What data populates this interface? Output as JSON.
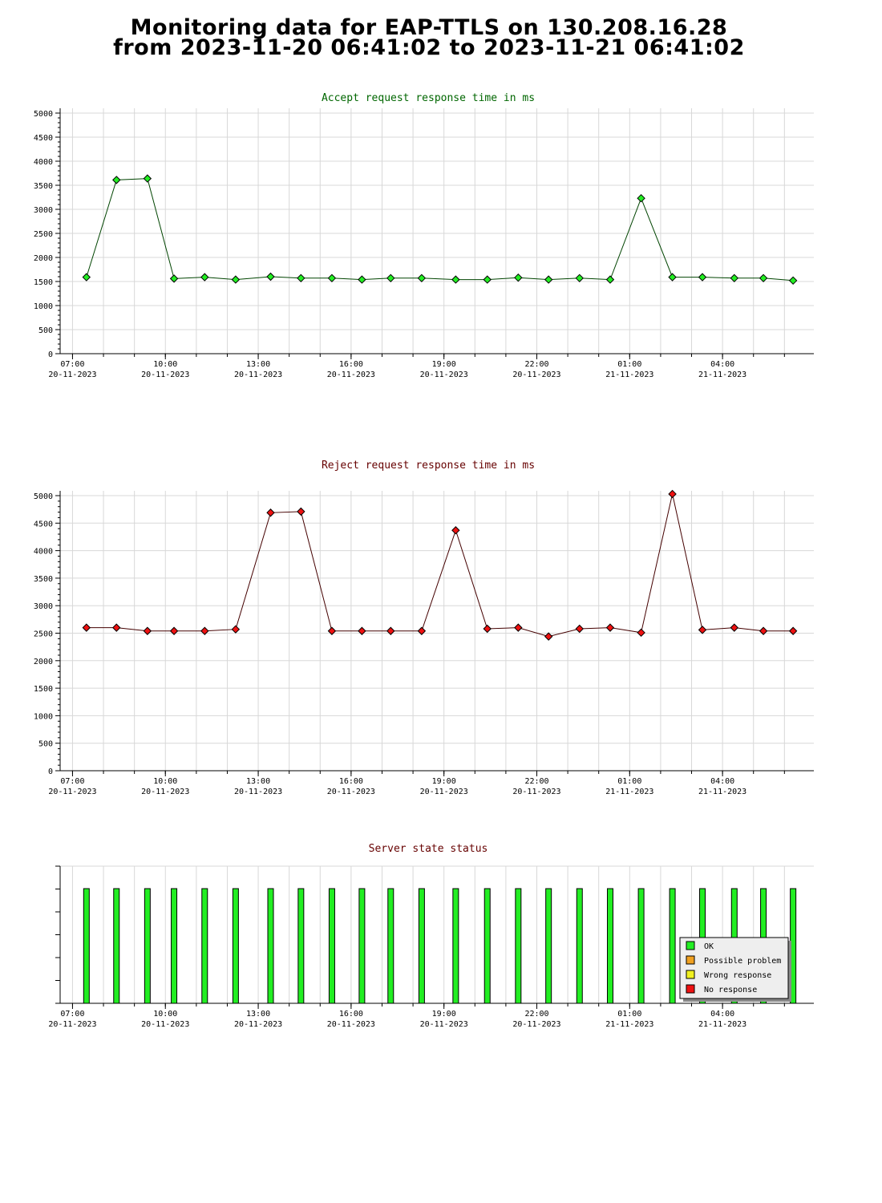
{
  "page": {
    "title_line1": "Monitoring data for EAP-TTLS on 130.208.16.28",
    "title_line2": "from 2023-11-20 06:41:02 to 2023-11-21 06:41:02"
  },
  "x_ticks": [
    {
      "time": "07:00",
      "date": "20-11-2023",
      "h": 7
    },
    {
      "time": "10:00",
      "date": "20-11-2023",
      "h": 10
    },
    {
      "time": "13:00",
      "date": "20-11-2023",
      "h": 13
    },
    {
      "time": "16:00",
      "date": "20-11-2023",
      "h": 16
    },
    {
      "time": "19:00",
      "date": "20-11-2023",
      "h": 19
    },
    {
      "time": "22:00",
      "date": "20-11-2023",
      "h": 22
    },
    {
      "time": "01:00",
      "date": "21-11-2023",
      "h": 25
    },
    {
      "time": "04:00",
      "date": "21-11-2023",
      "h": 28
    }
  ],
  "x_times": [
    7.45,
    8.42,
    9.42,
    10.28,
    11.27,
    12.27,
    13.4,
    14.38,
    15.38,
    16.35,
    17.28,
    18.28,
    19.38,
    20.4,
    21.4,
    22.38,
    23.38,
    24.37,
    25.37,
    26.38,
    27.35,
    28.38,
    29.32,
    30.28
  ],
  "colors": {
    "accept_line": "#004400",
    "accept_marker": "#22ee22",
    "reject_line": "#440000",
    "reject_marker": "#ee1111",
    "accept_title": "#006600",
    "reject_title": "#660000",
    "status_title": "#660000",
    "grid": "#d8d8d8",
    "ok": "#22ee22",
    "possible_problem": "#f0a020",
    "wrong_response": "#f0f020",
    "no_response": "#ee1111"
  },
  "chart_data": [
    {
      "type": "line",
      "title": "Accept request response time in ms",
      "ylim": [
        0,
        5000
      ],
      "y_ticks": [
        0,
        500,
        1000,
        1500,
        2000,
        2500,
        3000,
        3500,
        4000,
        4500,
        5000
      ],
      "grid": true,
      "values": [
        1590,
        3610,
        3640,
        1560,
        1590,
        1540,
        1600,
        1570,
        1570,
        1540,
        1570,
        1570,
        1540,
        1540,
        1580,
        1540,
        1570,
        1540,
        3230,
        1590,
        1590,
        1570,
        1570,
        1520
      ]
    },
    {
      "type": "line",
      "title": "Reject request response time in ms",
      "ylim": [
        0,
        5000
      ],
      "y_ticks": [
        0,
        500,
        1000,
        1500,
        2000,
        2500,
        3000,
        3500,
        4000,
        4500,
        5000
      ],
      "grid": true,
      "values": [
        2600,
        2600,
        2540,
        2540,
        2540,
        2570,
        4690,
        4710,
        2540,
        2540,
        2540,
        2540,
        4370,
        2580,
        2600,
        2440,
        2580,
        2600,
        2510,
        5030,
        2560,
        2600,
        2540,
        2540
      ]
    },
    {
      "type": "bar",
      "title": "Server state status",
      "grid": false,
      "statuses": [
        "OK",
        "OK",
        "OK",
        "OK",
        "OK",
        "OK",
        "OK",
        "OK",
        "OK",
        "OK",
        "OK",
        "OK",
        "OK",
        "OK",
        "OK",
        "OK",
        "OK",
        "OK",
        "OK",
        "OK",
        "OK",
        "OK",
        "OK",
        "OK"
      ],
      "legend_position": "bottom-right",
      "legend": [
        "OK",
        "Possible problem",
        "Wrong response",
        "No response"
      ]
    }
  ]
}
